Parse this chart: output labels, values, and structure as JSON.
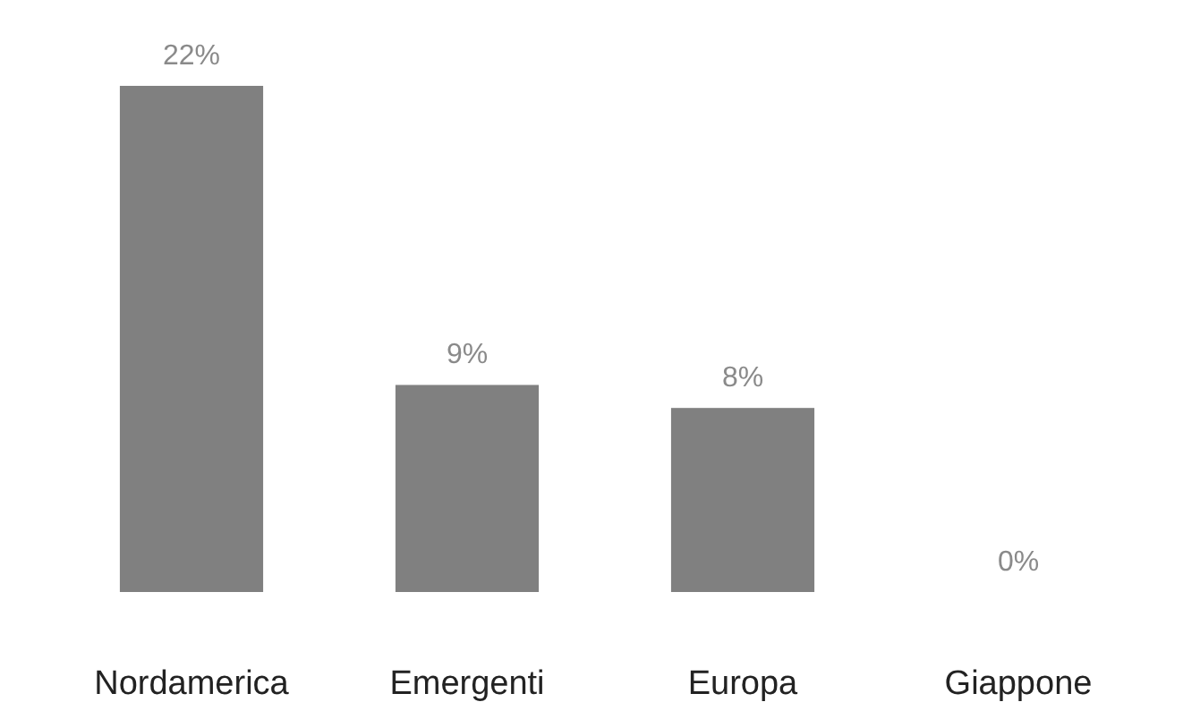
{
  "chart_data": {
    "type": "bar",
    "categories": [
      "Nordamerica",
      "Emergenti",
      "Europa",
      "Giappone"
    ],
    "values": [
      22,
      9,
      8,
      0
    ],
    "color": "#808080",
    "data_labels": true,
    "value_labels": [
      "22%",
      "9%",
      "8%",
      "0%"
    ]
  }
}
